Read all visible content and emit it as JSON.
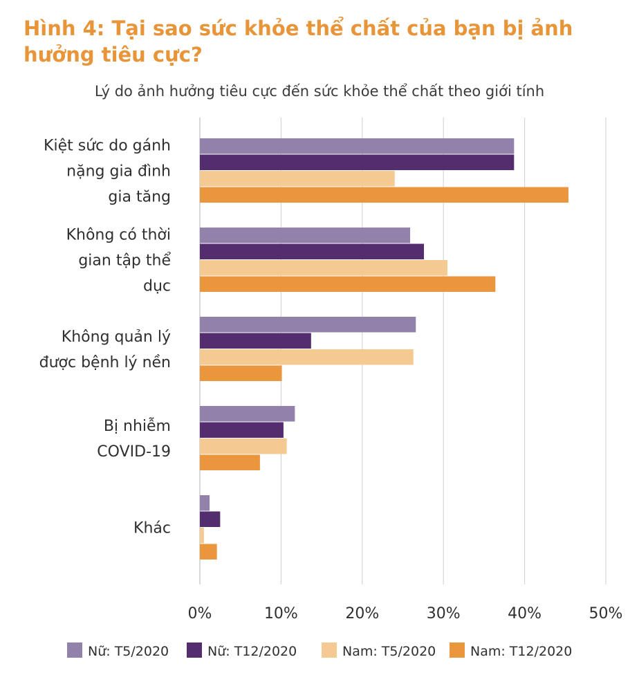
{
  "header": {
    "title": "Hình 4: Tại sao sức khỏe thể chất của bạn bị ảnh hưởng tiêu cực?"
  },
  "chart_data": {
    "type": "bar",
    "orientation": "horizontal",
    "title": "Hình 4: Tại sao sức khỏe thể chất của bạn bị ảnh hưởng tiêu cực?",
    "subtitle": "Lý do ảnh hưởng tiêu cực đến sức khỏe thể chất theo giới tính",
    "xlabel": "",
    "ylabel": "",
    "xlim": [
      0,
      50
    ],
    "x_ticks": [
      0,
      10,
      20,
      30,
      40,
      50
    ],
    "tick_format": "%",
    "grid": true,
    "legend_position": "bottom",
    "categories": [
      [
        "Kiệt sức do gánh",
        "nặng gia đình",
        "gia tăng"
      ],
      [
        "Không có thời",
        "gian tập thể",
        "dục"
      ],
      [
        "Không quản lý",
        "được bệnh lý nền"
      ],
      [
        "Bị nhiễm",
        "COVID-19"
      ],
      [
        "Khác"
      ]
    ],
    "series": [
      {
        "name": "Nữ: T5/2020",
        "color": "#9281aa",
        "values": [
          38.7,
          25.9,
          26.6,
          11.7,
          1.2
        ]
      },
      {
        "name": "Nữ: T12/2020",
        "color": "#532d6d",
        "values": [
          38.7,
          27.6,
          13.7,
          10.3,
          2.5
        ]
      },
      {
        "name": "Nam: T5/2020",
        "color": "#f5c992",
        "values": [
          24.0,
          30.5,
          26.3,
          10.7,
          0.5
        ]
      },
      {
        "name": "Nam: T12/2020",
        "color": "#ea963d",
        "values": [
          45.4,
          36.4,
          10.1,
          7.4,
          2.1
        ]
      }
    ]
  }
}
